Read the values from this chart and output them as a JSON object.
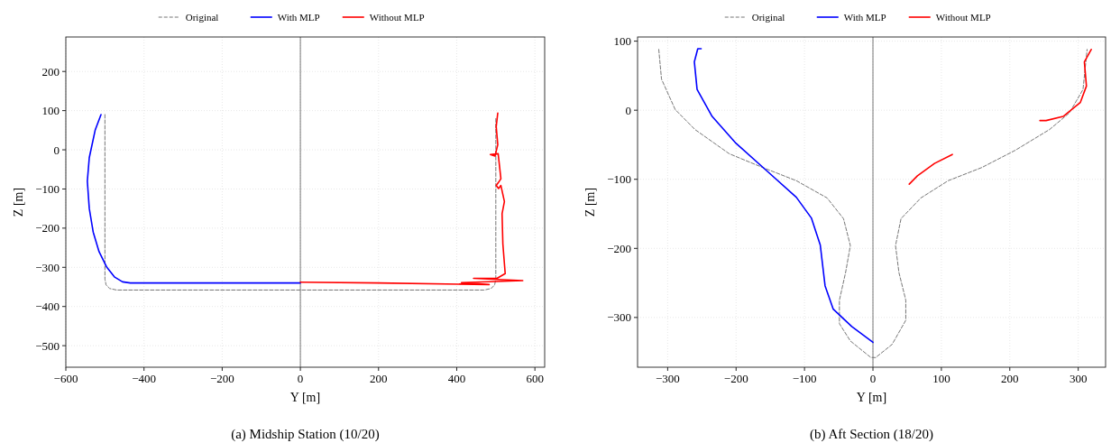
{
  "chart_data": [
    {
      "type": "line",
      "title": "(a) Midship Station (10/20)",
      "xlabel": "Y [m]",
      "ylabel": "Z [m]",
      "legend": "top",
      "grid": true,
      "xlim": [
        -600,
        625
      ],
      "ylim": [
        -555,
        288
      ],
      "xticks": [
        {
          "value": -600,
          "label": "−600"
        },
        {
          "value": -400,
          "label": "−400"
        },
        {
          "value": -200,
          "label": "−200"
        },
        0,
        200,
        400,
        600
      ],
      "yticks": [
        {
          "value": -500,
          "label": "−500"
        },
        {
          "value": -400,
          "label": "−400"
        },
        {
          "value": -300,
          "label": "−300"
        },
        {
          "value": -200,
          "label": "−200"
        },
        {
          "value": -100,
          "label": "−100"
        },
        0,
        100,
        200
      ],
      "ref_lines": [
        {
          "axis": "x",
          "value": 0,
          "color": "#555555"
        }
      ],
      "series": [
        {
          "name": "Original",
          "color": "#666666",
          "line_style": "dashed",
          "x": [
            -500,
            -500,
            -497,
            -488,
            -470,
            0,
            470,
            488,
            497,
            500,
            500
          ],
          "values": [
            90,
            -330,
            -345,
            -354,
            -358,
            -358,
            -358,
            -354,
            -345,
            -330,
            80
          ]
        },
        {
          "name": "With MLP",
          "color": "#0000ff",
          "line_style": "solid",
          "x": [
            -510,
            -525,
            -540,
            -545,
            -540,
            -530,
            -515,
            -495,
            -475,
            -455,
            -435,
            -200,
            0
          ],
          "values": [
            90,
            50,
            -20,
            -80,
            -150,
            -210,
            -260,
            -300,
            -325,
            -337,
            -340,
            -340,
            -340
          ]
        },
        {
          "name": "Without MLP",
          "color": "#ff0000",
          "line_style": "solid",
          "x": [
            0,
            200,
            483,
            412,
            569,
            443,
            503,
            524,
            518,
            516,
            522,
            513,
            507,
            501,
            507,
            513,
            506,
            486,
            498,
            505,
            501,
            505
          ],
          "values": [
            -338,
            -340,
            -344,
            -339,
            -334,
            -328,
            -328,
            -316,
            -240,
            -163,
            -132,
            -91,
            -99,
            -91,
            -83,
            -74,
            -10,
            -12,
            -16,
            13,
            59,
            94
          ]
        }
      ]
    },
    {
      "type": "line",
      "title": "(b) Aft Section (18/20)",
      "xlabel": "Y [m]",
      "ylabel": "Z [m]",
      "legend": "top",
      "grid": true,
      "xlim": [
        -344,
        340
      ],
      "ylim": [
        -372,
        106
      ],
      "xticks": [
        {
          "value": -300,
          "label": "−300"
        },
        {
          "value": -200,
          "label": "−200"
        },
        {
          "value": -100,
          "label": "−100"
        },
        0,
        100,
        200,
        300
      ],
      "yticks": [
        {
          "value": -300,
          "label": "−300"
        },
        {
          "value": -200,
          "label": "−200"
        },
        {
          "value": -100,
          "label": "−100"
        },
        0,
        100
      ],
      "ref_lines": [
        {
          "axis": "x",
          "value": 0,
          "color": "#555555"
        }
      ],
      "series": [
        {
          "name": "Original",
          "color": "#666666",
          "line_style": "dashed",
          "x": [
            -313,
            -309,
            -289,
            -260,
            -210,
            -161,
            -112,
            -67,
            -43,
            -33,
            -40,
            -49,
            -49,
            -33,
            -3,
            4,
            28,
            48,
            48,
            38,
            33,
            41,
            70,
            110,
            159,
            208,
            258,
            287,
            307,
            313
          ],
          "values": [
            88,
            45,
            1,
            -28,
            -63,
            -83,
            -102,
            -127,
            -157,
            -196,
            -235,
            -275,
            -309,
            -334,
            -358,
            -358,
            -339,
            -304,
            -275,
            -235,
            -196,
            -157,
            -127,
            -102,
            -83,
            -58,
            -28,
            -4,
            30,
            88
          ]
        },
        {
          "name": "With MLP",
          "color": "#0000ff",
          "line_style": "solid",
          "x": [
            -251,
            -256,
            -261,
            -257,
            -235,
            -200,
            -156,
            -112,
            -90,
            -77,
            -70,
            -58,
            -31,
            0
          ],
          "values": [
            89,
            89,
            70,
            30,
            -9,
            -48,
            -87,
            -126,
            -156,
            -195,
            -254,
            -288,
            -313,
            -336
          ]
        },
        {
          "name": "Without MLP",
          "color": "#ff0000",
          "line_style": "solid",
          "x": [
            319,
            309,
            312,
            303,
            278,
            253,
            244,
            null,
            53,
            65,
            90,
            116
          ],
          "values": [
            88,
            70,
            35,
            11,
            -9,
            -15,
            -15,
            null,
            -107,
            -95,
            -77,
            -64
          ]
        }
      ]
    }
  ]
}
